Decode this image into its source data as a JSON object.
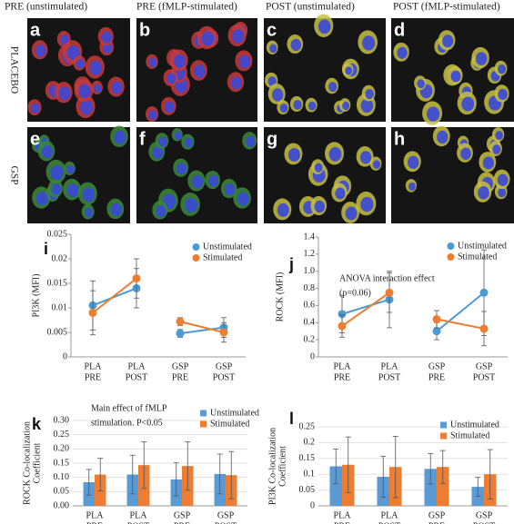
{
  "micrographs": {
    "column_headers": [
      "PRE (unstimulated)",
      "PRE (fMLP-stimulated)",
      "POST (unstimulated)",
      "POST (fMLP-stimulated)"
    ],
    "row_labels": [
      "PLACEBO",
      "GSP"
    ],
    "panel_letters": [
      "a",
      "b",
      "c",
      "d",
      "e",
      "f",
      "g",
      "h"
    ]
  },
  "chart_data": [
    {
      "type": "line",
      "letter": "i",
      "ylabel": [
        "PI3K (MFI)"
      ],
      "categories": [
        [
          "PLA",
          "PRE"
        ],
        [
          "PLA",
          "POST"
        ],
        [
          "GSP",
          "PRE"
        ],
        [
          "GSP",
          "POST"
        ]
      ],
      "series": [
        {
          "name": "Unstimulated",
          "color": "#4a9ad6",
          "values": [
            0.0105,
            0.014,
            0.0048,
            0.006
          ],
          "errors": [
            0.005,
            0.004,
            0.0008,
            0.002
          ]
        },
        {
          "name": "Stimulated",
          "color": "#ed7d31",
          "values": [
            0.009,
            0.016,
            0.0072,
            0.005
          ],
          "errors": [
            0.0045,
            0.004,
            0.0008,
            0.002
          ]
        }
      ],
      "ylim": [
        0,
        0.025
      ],
      "yticks": [
        0,
        0.005,
        0.01,
        0.015,
        0.02,
        0.025
      ]
    },
    {
      "type": "line",
      "letter": "j",
      "ylabel": [
        "ROCK (MFI)"
      ],
      "annotation": [
        "ANOVA  interaction effect",
        "(p=0.06)"
      ],
      "categories": [
        [
          "PLA",
          "PRE"
        ],
        [
          "PLA",
          "POST"
        ],
        [
          "GSP",
          "PRE"
        ],
        [
          "GSP",
          "POST"
        ]
      ],
      "series": [
        {
          "name": "Unstimulated",
          "color": "#4a9ad6",
          "values": [
            0.5,
            0.67,
            0.3,
            0.75
          ],
          "errors": [
            0.22,
            0.33,
            0.1,
            0.5
          ]
        },
        {
          "name": "Stimulated",
          "color": "#ed7d31",
          "values": [
            0.36,
            0.75,
            0.44,
            0.33
          ],
          "errors": [
            0.13,
            0.23,
            0.1,
            0.2
          ]
        }
      ],
      "ylim": [
        0,
        1.4
      ],
      "yticks": [
        0,
        0.2,
        0.4,
        0.6,
        0.8,
        {
          "value": 1,
          "label": "1.0"
        },
        1.2,
        1.4
      ]
    },
    {
      "type": "bar",
      "letter": "k",
      "ylabel": [
        "ROCK Co-localization",
        "Coefficient"
      ],
      "annotation": [
        "Main  effect  of  fMLP",
        "stimulation. P<0.05"
      ],
      "categories": [
        [
          "PLA",
          "PRE"
        ],
        [
          "PLA",
          "POST"
        ],
        [
          "GSP",
          "PRE"
        ],
        [
          "GSP",
          "POST"
        ]
      ],
      "series": [
        {
          "name": "Unstimulated",
          "color": "#5b9bd5",
          "values": [
            0.083,
            0.11,
            0.093,
            0.112
          ],
          "errors": [
            0.045,
            0.068,
            0.058,
            0.07
          ]
        },
        {
          "name": "Stimulated",
          "color": "#ed7d31",
          "values": [
            0.11,
            0.143,
            0.14,
            0.108
          ],
          "errors": [
            0.057,
            0.082,
            0.085,
            0.083
          ]
        }
      ],
      "ylim": [
        0,
        0.3
      ],
      "yticks": [
        {
          "value": 0,
          "label": "0.00"
        },
        {
          "value": 0.05,
          "label": "0.05"
        },
        {
          "value": 0.1,
          "label": "0.10"
        },
        {
          "value": 0.15,
          "label": "0.15"
        },
        {
          "value": 0.2,
          "label": "0.20"
        },
        {
          "value": 0.25,
          "label": "0.25"
        },
        {
          "value": 0.3,
          "label": "0.30"
        }
      ]
    },
    {
      "type": "bar",
      "letter": "l",
      "ylabel": [
        "PI3K Co-localization",
        "Coefficient"
      ],
      "categories": [
        [
          "PLA",
          "PRE"
        ],
        [
          "PLA",
          "POST"
        ],
        [
          "GSP",
          "PRE"
        ],
        [
          "GSP",
          "POST"
        ]
      ],
      "series": [
        {
          "name": "Unstimulated",
          "color": "#5b9bd5",
          "values": [
            0.125,
            0.092,
            0.117,
            0.06
          ],
          "errors": [
            0.055,
            0.065,
            0.048,
            0.03
          ]
        },
        {
          "name": "Stimulated",
          "color": "#ed7d31",
          "values": [
            0.13,
            0.123,
            0.123,
            0.1
          ],
          "errors": [
            0.088,
            0.097,
            0.052,
            0.078
          ]
        }
      ],
      "ylim": [
        0,
        0.25
      ],
      "yticks": [
        0,
        0.05,
        0.1,
        0.15,
        0.2,
        0.25
      ]
    }
  ]
}
